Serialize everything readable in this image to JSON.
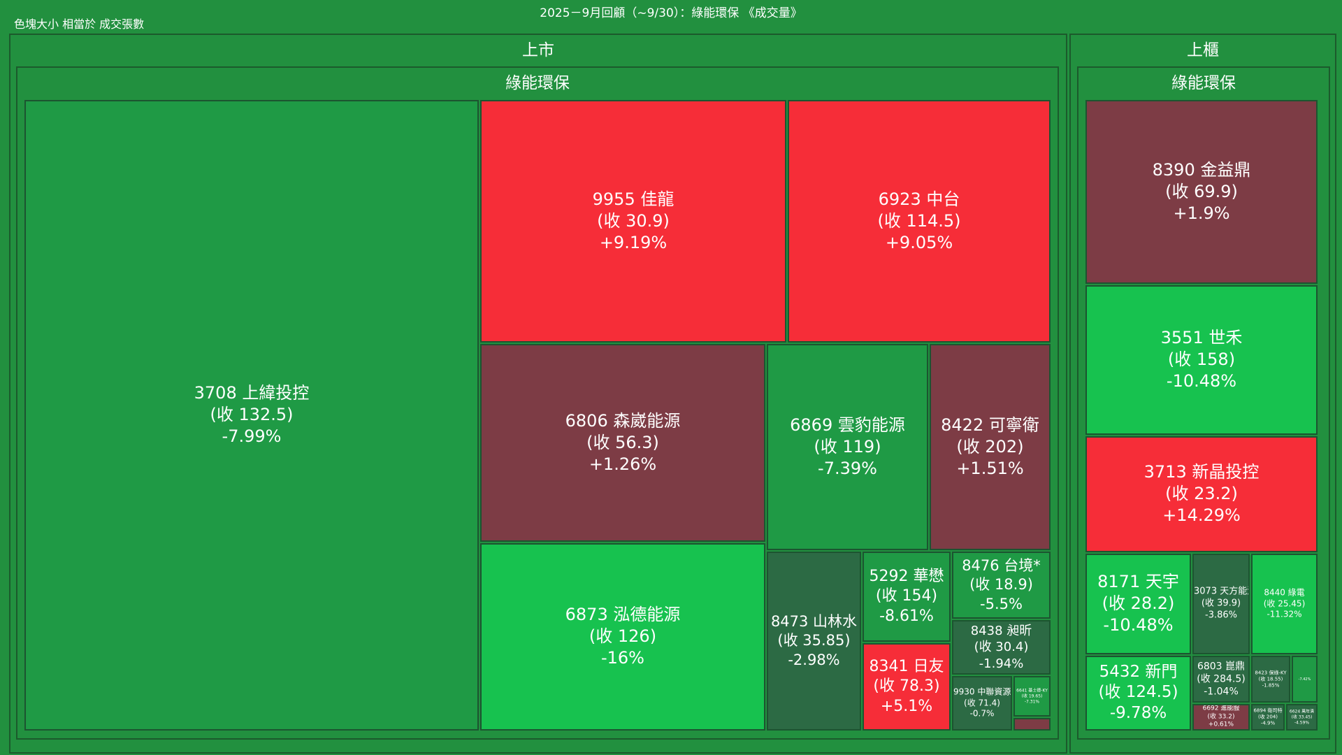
{
  "header": {
    "title": "2025－9月回顧（~9/30）：綠能環保 《成交量》",
    "note": "色塊大小 相當於 成交張數"
  },
  "colors": {
    "up_strong": "#f62d38",
    "up_mild": "#c03c46",
    "up_flat": "#7d3c45",
    "down_strong": "#17c24f",
    "down_mid": "#1f9a45",
    "down_mild": "#2c6a44",
    "background": "#22903f"
  },
  "chart_data": {
    "type": "treemap",
    "size_metric": "成交張數",
    "markets": [
      {
        "name": "上市",
        "sector": "綠能環保",
        "stocks": [
          {
            "code": "3708",
            "name": "上緯投控",
            "close": "(收 132.5)",
            "change": "-7.99%",
            "change_pct": -7.99
          },
          {
            "code": "9955",
            "name": "佳龍",
            "close": "(收 30.9)",
            "change": "+9.19%",
            "change_pct": 9.19
          },
          {
            "code": "6923",
            "name": "中台",
            "close": "(收 114.5)",
            "change": "+9.05%",
            "change_pct": 9.05
          },
          {
            "code": "6806",
            "name": "森崴能源",
            "close": "(收 56.3)",
            "change": "+1.26%",
            "change_pct": 1.26
          },
          {
            "code": "6869",
            "name": "雲豹能源",
            "close": "(收 119)",
            "change": "-7.39%",
            "change_pct": -7.39
          },
          {
            "code": "8422",
            "name": "可寧衛",
            "close": "(收 202)",
            "change": "+1.51%",
            "change_pct": 1.51
          },
          {
            "code": "6873",
            "name": "泓德能源",
            "close": "(收 126)",
            "change": "-16%",
            "change_pct": -16
          },
          {
            "code": "8473",
            "name": "山林水",
            "close": "(收 35.85)",
            "change": "-2.98%",
            "change_pct": -2.98
          },
          {
            "code": "5292",
            "name": "華懋",
            "close": "(收 154)",
            "change": "-8.61%",
            "change_pct": -8.61
          },
          {
            "code": "8476",
            "name": "台境*",
            "close": "(收 18.9)",
            "change": "-5.5%",
            "change_pct": -5.5
          },
          {
            "code": "8438",
            "name": "昶昕",
            "close": "(收 30.4)",
            "change": "-1.94%",
            "change_pct": -1.94
          },
          {
            "code": "8341",
            "name": "日友",
            "close": "(收 78.3)",
            "change": "+5.1%",
            "change_pct": 5.1
          },
          {
            "code": "9930",
            "name": "中聯資源",
            "close": "(收 71.4)",
            "change": "-0.7%",
            "change_pct": -0.7
          },
          {
            "code": "6641",
            "name": "基士德-KY",
            "close": "(收 19.65)",
            "change": "-7.31%",
            "change_pct": -7.31
          },
          {
            "code": "",
            "name": "",
            "close": "",
            "change": "",
            "change_pct": 0.5
          }
        ]
      },
      {
        "name": "上櫃",
        "sector": "綠能環保",
        "stocks": [
          {
            "code": "8390",
            "name": "金益鼎",
            "close": "(收 69.9)",
            "change": "+1.9%",
            "change_pct": 1.9
          },
          {
            "code": "3551",
            "name": "世禾",
            "close": "(收 158)",
            "change": "-10.48%",
            "change_pct": -10.48
          },
          {
            "code": "3713",
            "name": "新晶投控",
            "close": "(收 23.2)",
            "change": "+14.29%",
            "change_pct": 14.29
          },
          {
            "code": "8171",
            "name": "天宇",
            "close": "(收 28.2)",
            "change": "-10.48%",
            "change_pct": -10.48
          },
          {
            "code": "3073",
            "name": "天方能源",
            "close": "(收 39.9)",
            "change": "-3.86%",
            "change_pct": -3.86
          },
          {
            "code": "8440",
            "name": "綠電",
            "close": "(收 25.45)",
            "change": "-11.32%",
            "change_pct": -11.32
          },
          {
            "code": "5432",
            "name": "新門",
            "close": "(收 124.5)",
            "change": "-9.78%",
            "change_pct": -9.78
          },
          {
            "code": "6803",
            "name": "崑鼎",
            "close": "(收 284.5)",
            "change": "-1.04%",
            "change_pct": -1.04
          },
          {
            "code": "8423",
            "name": "保綠-KY",
            "close": "(收 18.55)",
            "change": "-1.85%",
            "change_pct": -1.85
          },
          {
            "code": "",
            "name": "",
            "close": "",
            "change": "-7.42%",
            "change_pct": -7.42
          },
          {
            "code": "6692",
            "name": "進能服",
            "close": "(收 33.2)",
            "change": "+0.61%",
            "change_pct": 0.61
          },
          {
            "code": "6894",
            "name": "衛司特",
            "close": "(收 204)",
            "change": "-4.9%",
            "change_pct": -4.9
          },
          {
            "code": "6624",
            "name": "萬年清",
            "close": "(收 33.45)",
            "change": "-4.59%",
            "change_pct": -4.59
          }
        ]
      }
    ]
  }
}
